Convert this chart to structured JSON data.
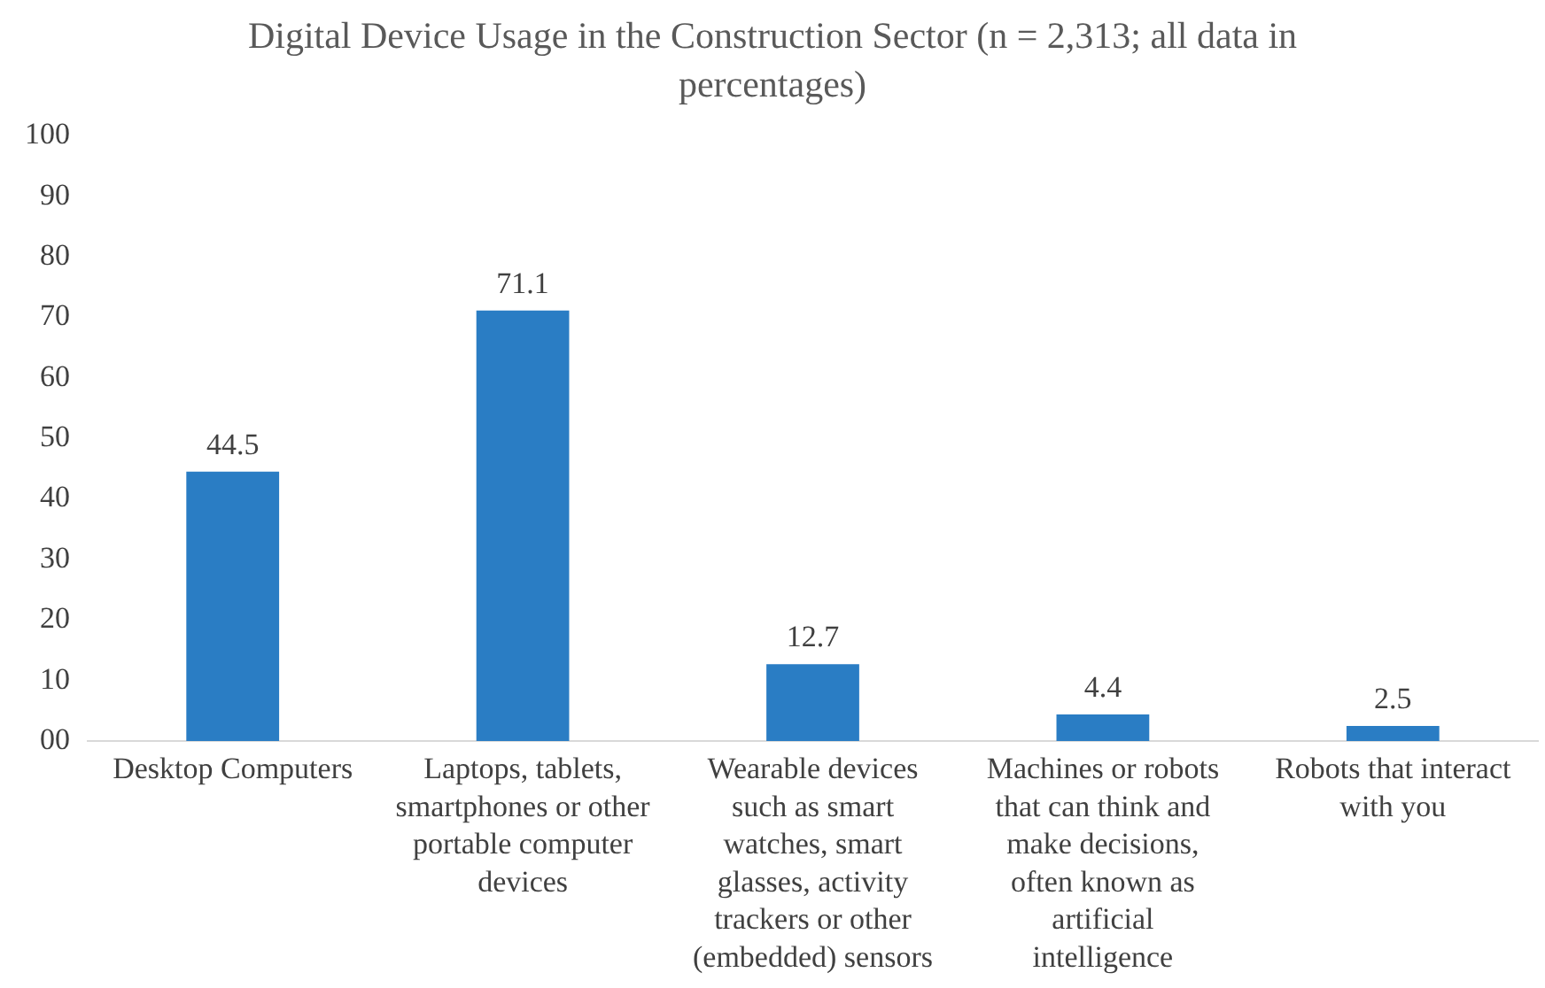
{
  "chart_data": {
    "type": "bar",
    "title": "Digital Device Usage in the Construction Sector (n = 2,313; all data in percentages)",
    "categories": [
      "Desktop Computers",
      "Laptops, tablets, smartphones or other portable computer devices",
      "Wearable devices such as smart watches, smart glasses, activity trackers or other (embedded) sensors",
      "Machines or robots that can think and make decisions, often known as artificial intelligence",
      "Robots that interact with you"
    ],
    "values": [
      44.5,
      71.1,
      12.7,
      4.4,
      2.5
    ],
    "color": "#2a7dc4",
    "ylim": [
      0,
      100
    ],
    "yticks": [
      {
        "value": 0,
        "label": "00"
      },
      10,
      20,
      30,
      40,
      50,
      60,
      70,
      80,
      90,
      100
    ],
    "data_labels": true,
    "grid": false,
    "legend": false
  }
}
